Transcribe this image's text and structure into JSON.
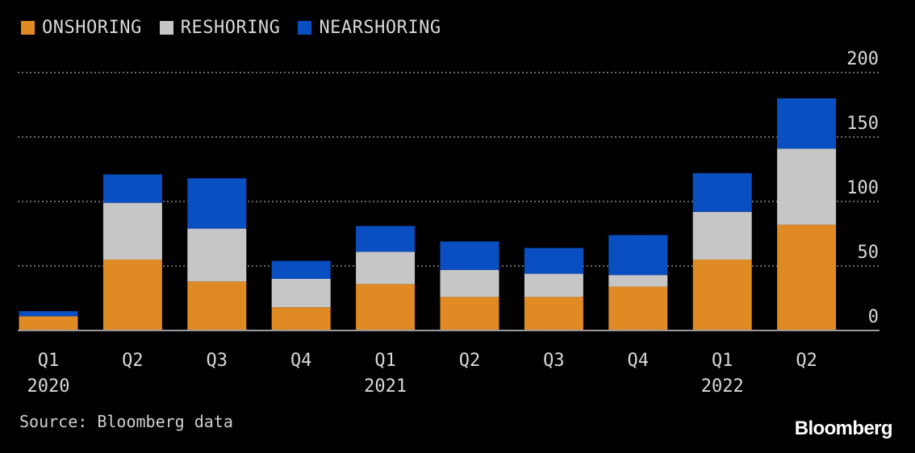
{
  "legend": {
    "onshoring": "ONSHORING",
    "reshoring": "RESHORING",
    "nearshoring": "NEARSHORING"
  },
  "colors": {
    "onshoring": "#e08a24",
    "reshoring": "#c6c6c6",
    "nearshoring": "#0a4fc2",
    "grid": "#8a8a8a",
    "axis_text": "#d9d9d9"
  },
  "source": "Source: Bloomberg data",
  "brand": "Bloomberg",
  "chart_data": {
    "type": "bar",
    "stacked": true,
    "categories": [
      "Q1 2020",
      "Q2 2020",
      "Q3 2020",
      "Q4 2020",
      "Q1 2021",
      "Q2 2021",
      "Q3 2021",
      "Q4 2021",
      "Q1 2022",
      "Q2 2022"
    ],
    "tick_labels": [
      {
        "quarter": "Q1",
        "year": "2020"
      },
      {
        "quarter": "Q2",
        "year": ""
      },
      {
        "quarter": "Q3",
        "year": ""
      },
      {
        "quarter": "Q4",
        "year": ""
      },
      {
        "quarter": "Q1",
        "year": "2021"
      },
      {
        "quarter": "Q2",
        "year": ""
      },
      {
        "quarter": "Q3",
        "year": ""
      },
      {
        "quarter": "Q4",
        "year": ""
      },
      {
        "quarter": "Q1",
        "year": "2022"
      },
      {
        "quarter": "Q2",
        "year": ""
      }
    ],
    "series": [
      {
        "name": "ONSHORING",
        "values": [
          11,
          55,
          38,
          18,
          36,
          26,
          26,
          34,
          55,
          82
        ]
      },
      {
        "name": "RESHORING",
        "values": [
          0,
          44,
          41,
          22,
          25,
          21,
          18,
          9,
          37,
          59
        ]
      },
      {
        "name": "NEARSHORING",
        "values": [
          4,
          22,
          39,
          14,
          20,
          22,
          20,
          31,
          30,
          39
        ]
      }
    ],
    "ylim": [
      0,
      200
    ],
    "yticks": [
      0,
      50,
      100,
      150,
      200
    ],
    "y_axis_position": "right",
    "grid": true,
    "legend_position": "top-left"
  }
}
